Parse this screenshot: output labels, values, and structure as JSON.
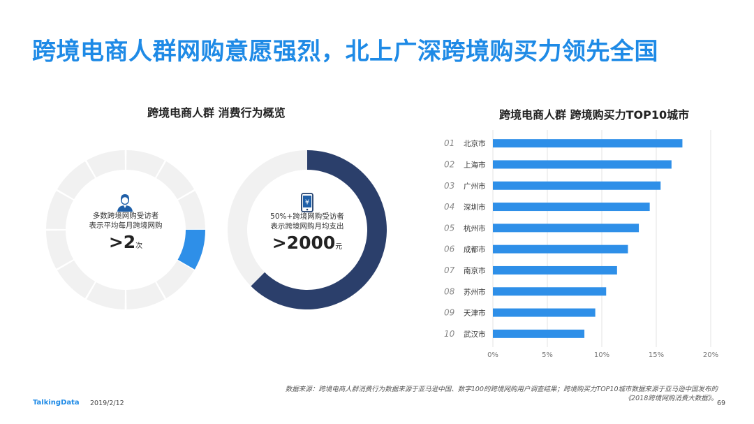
{
  "title": "跨境电商人群网购意愿强烈，北上广深跨境购买力领先全国",
  "left_panel": {
    "title": "跨境电商人群  消费行为概览",
    "donut1": {
      "desc_line1": "多数跨境网购受访者",
      "desc_line2": "表示平均每月跨境网购",
      "value": ">2",
      "unit": "次",
      "fill_fraction": 0.083,
      "fill_color": "#2e8fe8",
      "track_color": "#f1f1f1",
      "icon": "person-icon"
    },
    "donut2": {
      "desc_line1": "50%+跨境网购受访者",
      "desc_line2": "表示跨境网购月均支出",
      "value": ">2000",
      "unit": "元",
      "fill_fraction": 0.625,
      "fill_color": "#2b3f6b",
      "track_color": "#f1f1f1",
      "icon": "phone-yuan-icon"
    }
  },
  "chart_data": {
    "type": "bar",
    "orientation": "horizontal",
    "title": "跨境电商人群  跨境购买力TOP10城市",
    "ranks": [
      "01",
      "02",
      "03",
      "04",
      "05",
      "06",
      "07",
      "08",
      "09",
      "10"
    ],
    "categories": [
      "北京市",
      "上海市",
      "广州市",
      "深圳市",
      "杭州市",
      "成都市",
      "南京市",
      "苏州市",
      "天津市",
      "武汉市"
    ],
    "values": [
      17.4,
      16.4,
      15.4,
      14.4,
      13.4,
      12.4,
      11.4,
      10.4,
      9.4,
      8.4
    ],
    "xlim": [
      0,
      20
    ],
    "x_ticks": [
      "0%",
      "5%",
      "10%",
      "15%",
      "20%"
    ],
    "grid": true,
    "bar_color": "#2e8fe8"
  },
  "footer": {
    "note_line1": "数据来源：跨境电商人群消费行为数据来源于亚马逊中国、数字100的跨境网购用户调查结果；跨境购买力TOP10城市数据来源于亚马逊中国发布的",
    "note_line2": "《2018跨境网购消费大数据》。",
    "brand": "TalkingData",
    "date": "2019/2/12",
    "page": "69"
  }
}
